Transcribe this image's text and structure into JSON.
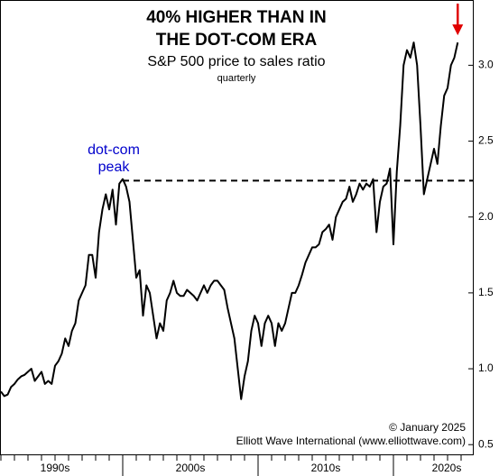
{
  "chart_data": {
    "type": "line",
    "title": [
      "40% HIGHER THAN IN",
      "THE DOT-COM ERA"
    ],
    "subtitle": "S&P 500 price to sales ratio",
    "frequency_note": "quarterly",
    "x_decade_labels": [
      "1990s",
      "2000s",
      "2010s",
      "2020s"
    ],
    "categories": [
      null,
      null,
      null,
      null,
      null,
      null,
      null,
      null,
      null,
      null,
      null,
      null,
      null,
      null,
      null,
      null,
      null,
      null,
      null,
      null,
      null,
      null,
      null,
      null,
      null,
      null,
      null,
      null,
      null,
      null,
      null,
      null,
      null,
      null,
      null,
      null,
      null,
      null,
      null,
      null,
      null,
      null,
      null,
      null,
      null,
      null,
      null,
      null,
      null,
      null,
      null,
      null,
      null,
      null,
      null,
      null,
      null,
      null,
      null,
      null,
      null,
      null,
      null,
      null,
      null,
      null,
      null,
      null,
      null,
      null,
      null,
      null,
      null,
      null,
      null,
      null,
      null,
      null,
      null,
      null,
      null,
      null,
      null,
      null,
      null,
      null,
      null,
      null,
      null,
      null,
      null,
      null,
      null,
      null,
      null,
      null,
      null,
      null,
      null,
      null,
      null,
      null,
      null,
      null,
      null,
      null,
      null,
      null,
      null,
      null,
      null,
      null,
      null,
      null,
      null,
      null,
      null,
      null,
      null,
      null,
      null,
      null,
      null,
      null,
      null,
      null,
      null,
      null,
      null,
      null,
      null,
      null,
      null,
      null,
      null,
      null
    ],
    "series": [
      {
        "name": "S&P 500 price to sales ratio",
        "color": "#000000",
        "values": [
          0.85,
          0.82,
          0.83,
          0.88,
          0.9,
          0.93,
          0.95,
          0.96,
          0.98,
          1.0,
          0.92,
          0.95,
          0.98,
          0.9,
          0.92,
          0.9,
          1.02,
          1.05,
          1.1,
          1.2,
          1.15,
          1.25,
          1.3,
          1.45,
          1.5,
          1.55,
          1.75,
          1.75,
          1.6,
          1.9,
          2.05,
          2.15,
          2.05,
          2.18,
          1.95,
          2.22,
          2.25,
          2.2,
          2.1,
          1.85,
          1.6,
          1.65,
          1.35,
          1.55,
          1.5,
          1.35,
          1.2,
          1.3,
          1.25,
          1.45,
          1.5,
          1.58,
          1.5,
          1.48,
          1.48,
          1.52,
          1.5,
          1.48,
          1.45,
          1.5,
          1.55,
          1.5,
          1.55,
          1.58,
          1.58,
          1.55,
          1.52,
          1.4,
          1.3,
          1.2,
          1.0,
          0.8,
          0.95,
          1.05,
          1.25,
          1.35,
          1.3,
          1.15,
          1.3,
          1.35,
          1.3,
          1.15,
          1.3,
          1.25,
          1.3,
          1.4,
          1.5,
          1.5,
          1.55,
          1.62,
          1.7,
          1.75,
          1.8,
          1.8,
          1.82,
          1.9,
          1.92,
          1.95,
          1.85,
          2.0,
          2.05,
          2.1,
          2.12,
          2.2,
          2.1,
          2.15,
          2.22,
          2.18,
          2.22,
          2.2,
          2.25,
          1.9,
          2.1,
          2.2,
          2.22,
          2.32,
          1.82,
          2.3,
          2.6,
          3.0,
          3.1,
          3.05,
          3.15,
          3.0,
          2.6,
          2.15,
          2.25,
          2.35,
          2.45,
          2.35,
          2.6,
          2.8,
          2.85,
          3.0,
          3.05,
          3.15
        ]
      }
    ],
    "reference_line": {
      "value": 2.24,
      "label": [
        "dot-com",
        "peak"
      ],
      "color": "#0000cc"
    },
    "arrow_color": "#e00000",
    "ylim": [
      0.43,
      3.43
    ],
    "yticks": [
      0.5,
      {
        "value": 1.0,
        "label": "1.0"
      },
      1.5,
      {
        "value": 2.0,
        "label": "2.0"
      },
      2.5,
      {
        "value": 3.0,
        "label": "3.0"
      }
    ],
    "annotations": [
      "© January 2025",
      "Elliott Wave International (www.elliottwave.com)"
    ]
  }
}
